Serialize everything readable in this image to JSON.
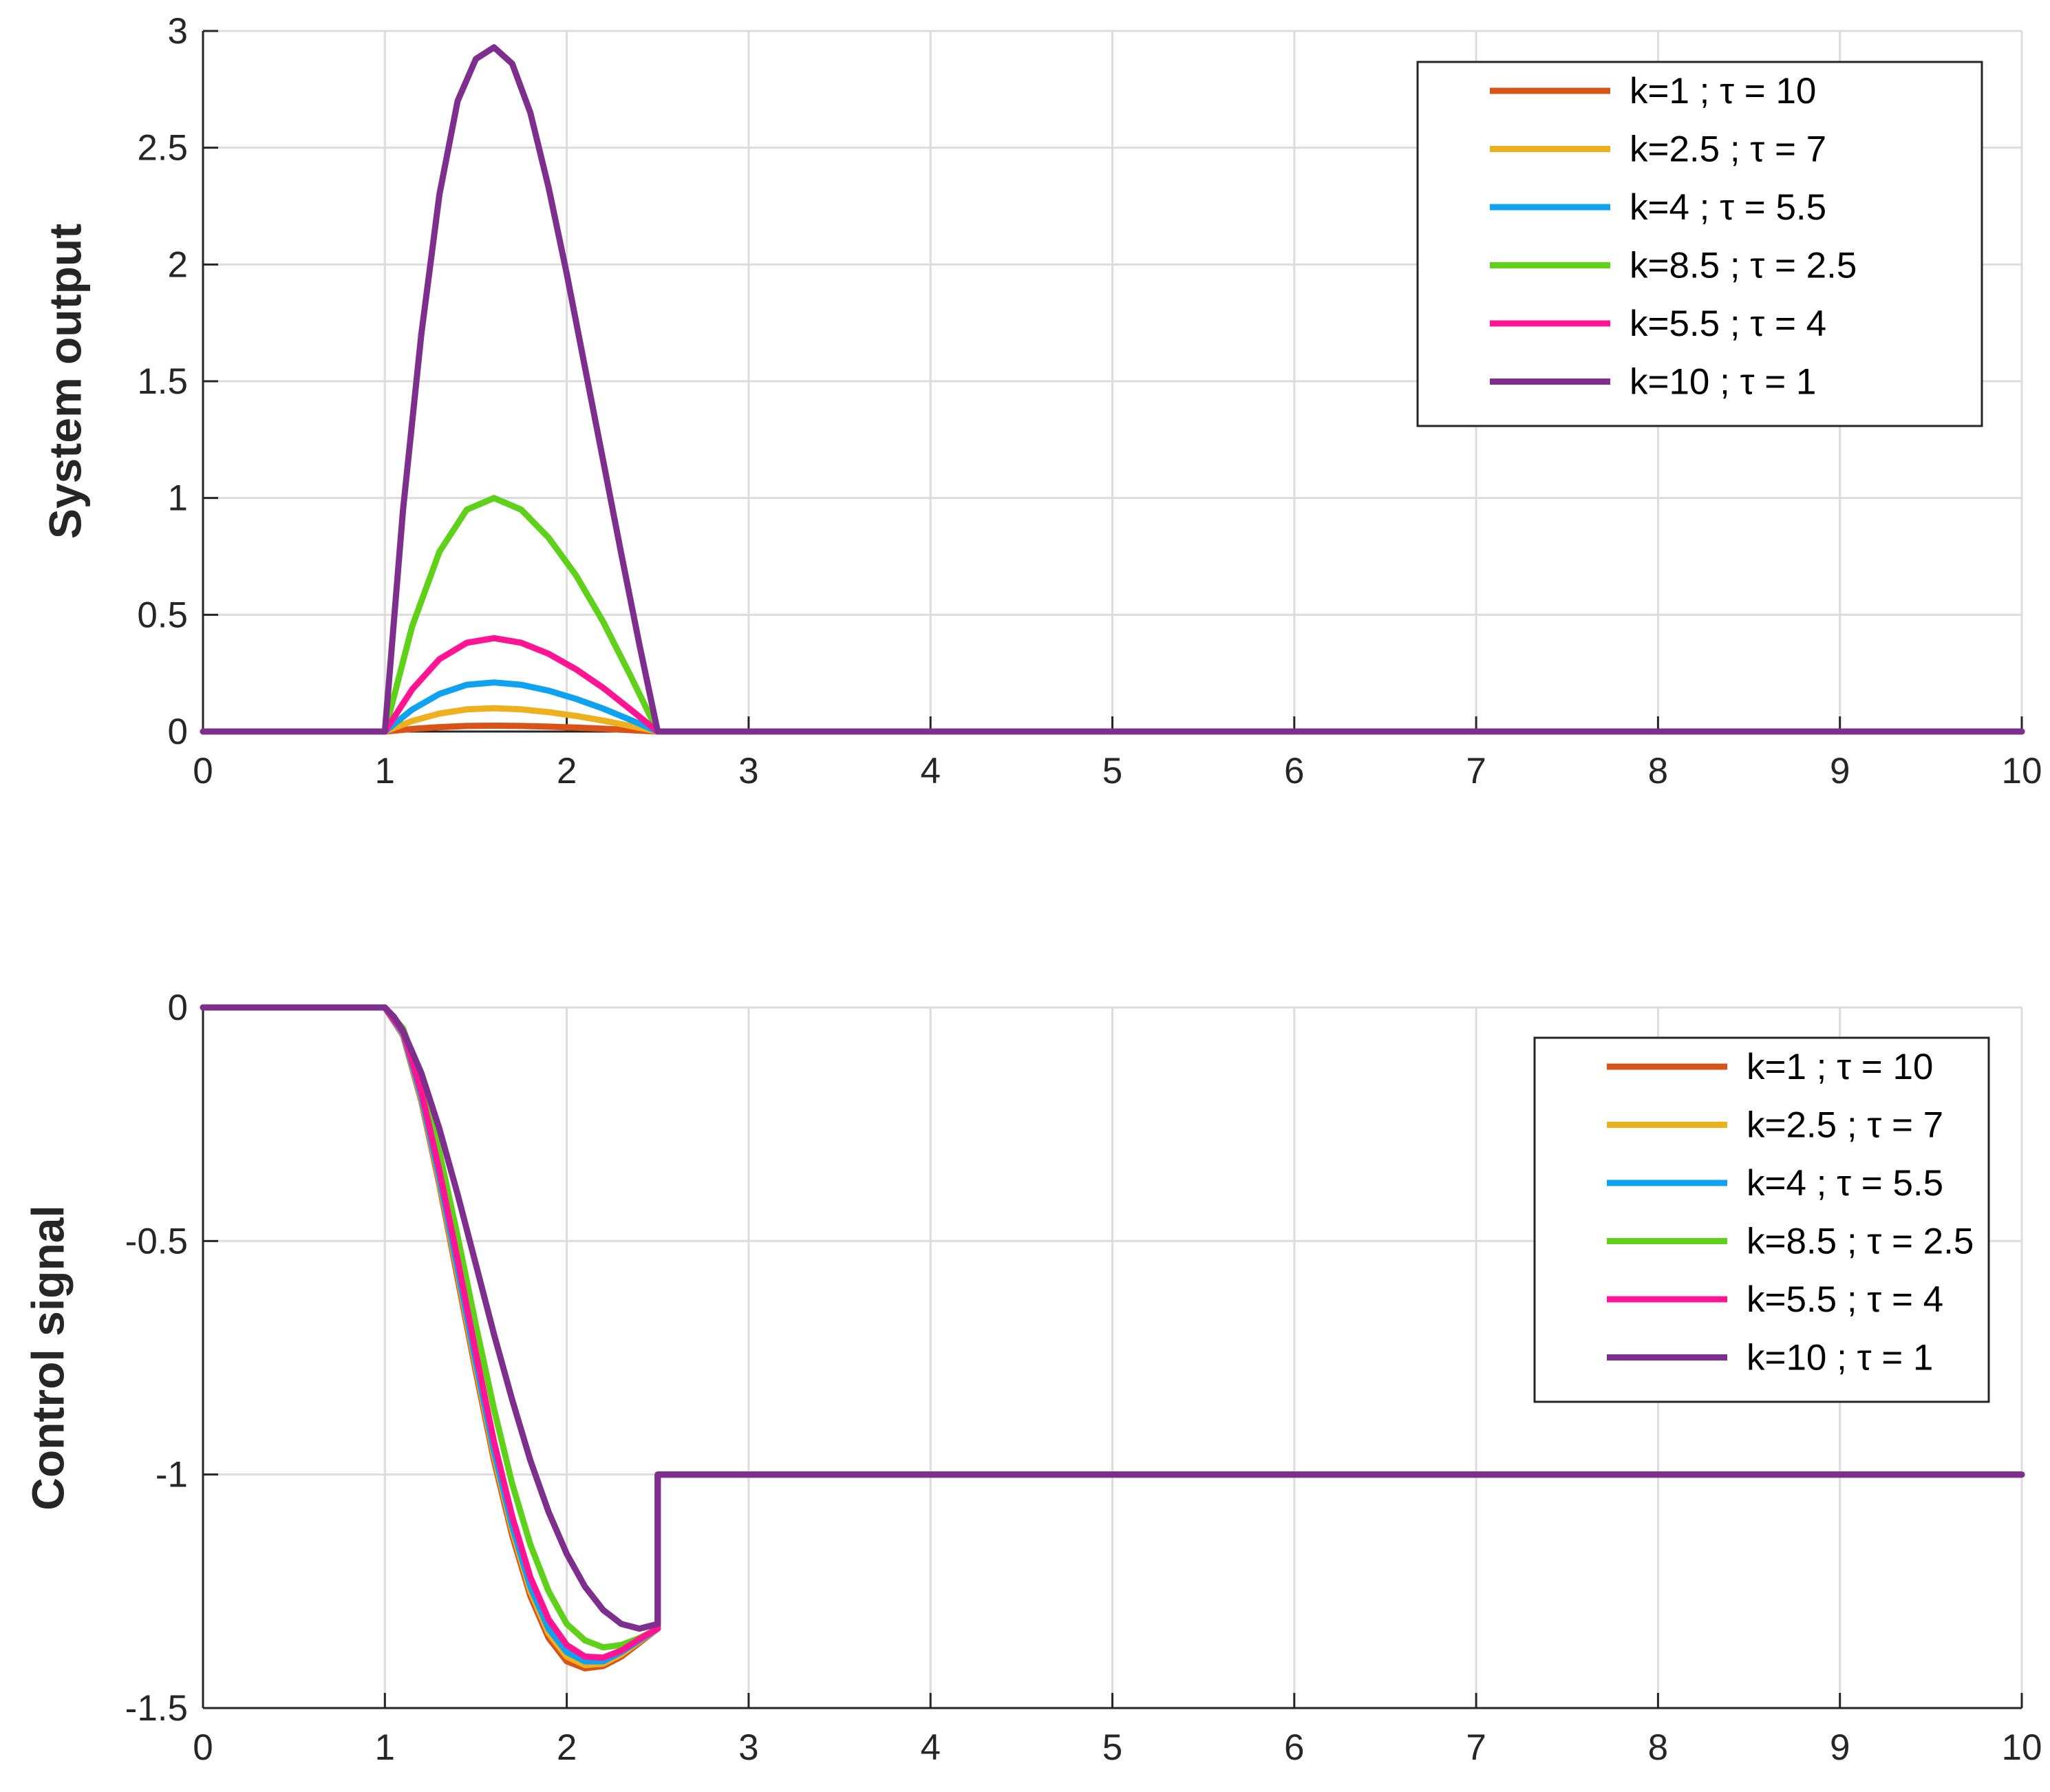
{
  "chart_data": [
    {
      "type": "line",
      "title": "",
      "xlabel": "",
      "ylabel": "System output",
      "xlim": [
        0,
        10
      ],
      "ylim": [
        0,
        3
      ],
      "xticks": [
        "0",
        "1",
        "2",
        "3",
        "4",
        "5",
        "6",
        "7",
        "8",
        "9",
        "10"
      ],
      "yticks": [
        "0",
        "0.5",
        "1",
        "1.5",
        "2",
        "2.5",
        "3"
      ],
      "grid": true,
      "legend_position": "top-right",
      "series": [
        {
          "name": "k=1 ; τ = 10",
          "color": "#D95319",
          "x": [
            0,
            1,
            1.15,
            1.3,
            1.45,
            1.6,
            1.75,
            1.9,
            2.05,
            2.2,
            2.35,
            2.5,
            10
          ],
          "y": [
            0,
            0,
            0.011,
            0.019,
            0.024,
            0.025,
            0.024,
            0.021,
            0.017,
            0.012,
            0.006,
            0,
            0
          ]
        },
        {
          "name": "k=2.5 ; τ = 7",
          "color": "#EDB120",
          "x": [
            0,
            1,
            1.15,
            1.3,
            1.45,
            1.6,
            1.75,
            1.9,
            2.05,
            2.2,
            2.35,
            2.5,
            10
          ],
          "y": [
            0,
            0,
            0.045,
            0.077,
            0.095,
            0.1,
            0.095,
            0.083,
            0.067,
            0.047,
            0.024,
            0,
            0
          ]
        },
        {
          "name": "k=4 ; τ = 5.5",
          "color": "#0EA2F0",
          "x": [
            0,
            1,
            1.15,
            1.3,
            1.45,
            1.6,
            1.75,
            1.9,
            2.05,
            2.2,
            2.35,
            2.5,
            10
          ],
          "y": [
            0,
            0,
            0.094,
            0.161,
            0.2,
            0.21,
            0.2,
            0.175,
            0.14,
            0.098,
            0.05,
            0,
            0
          ]
        },
        {
          "name": "k=8.5 ; τ = 2.5",
          "color": "#5FD11A",
          "x": [
            0,
            1,
            1.15,
            1.3,
            1.45,
            1.6,
            1.75,
            1.9,
            2.05,
            2.2,
            2.35,
            2.5,
            10
          ],
          "y": [
            0,
            0,
            0.45,
            0.77,
            0.95,
            1.0,
            0.95,
            0.83,
            0.67,
            0.47,
            0.24,
            0,
            0
          ]
        },
        {
          "name": "k=5.5 ; τ = 4",
          "color": "#FF1493",
          "x": [
            0,
            1,
            1.15,
            1.3,
            1.45,
            1.6,
            1.75,
            1.9,
            2.05,
            2.2,
            2.35,
            2.5,
            10
          ],
          "y": [
            0,
            0,
            0.18,
            0.31,
            0.38,
            0.4,
            0.38,
            0.333,
            0.267,
            0.187,
            0.095,
            0,
            0
          ]
        },
        {
          "name": "k=10 ; τ = 1",
          "color": "#7E2F8E",
          "x": [
            0,
            1,
            1.1,
            1.2,
            1.3,
            1.4,
            1.5,
            1.6,
            1.7,
            1.8,
            1.9,
            2.0,
            2.1,
            2.2,
            2.3,
            2.4,
            2.5,
            10
          ],
          "y": [
            0,
            0,
            0.95,
            1.7,
            2.3,
            2.7,
            2.88,
            2.93,
            2.86,
            2.65,
            2.33,
            1.96,
            1.56,
            1.16,
            0.76,
            0.37,
            0,
            0
          ]
        }
      ]
    },
    {
      "type": "line",
      "title": "",
      "xlabel": "",
      "ylabel": "Control signal",
      "xlim": [
        0,
        10
      ],
      "ylim": [
        -1.5,
        0
      ],
      "xticks": [
        "0",
        "1",
        "2",
        "3",
        "4",
        "5",
        "6",
        "7",
        "8",
        "9",
        "10"
      ],
      "yticks": [
        "0",
        "-0.5",
        "-1",
        "-1.5"
      ],
      "grid": true,
      "legend_position": "top-right",
      "series": [
        {
          "name": "k=1 ; τ = 10",
          "color": "#D95319",
          "x": [
            0,
            1,
            1.1,
            1.2,
            1.3,
            1.4,
            1.5,
            1.6,
            1.7,
            1.8,
            1.9,
            2.0,
            2.1,
            2.2,
            2.3,
            2.4,
            2.5,
            2.5,
            10
          ],
          "y": [
            0,
            0,
            -0.06,
            -0.2,
            -0.38,
            -0.58,
            -0.78,
            -0.97,
            -1.13,
            -1.26,
            -1.35,
            -1.4,
            -1.415,
            -1.41,
            -1.39,
            -1.36,
            -1.33,
            -1.0,
            -1.0
          ]
        },
        {
          "name": "k=2.5 ; τ = 7",
          "color": "#EDB120",
          "x": [
            0,
            1,
            1.1,
            1.2,
            1.3,
            1.4,
            1.5,
            1.6,
            1.7,
            1.8,
            1.9,
            2.0,
            2.1,
            2.2,
            2.3,
            2.4,
            2.5,
            2.5,
            10
          ],
          "y": [
            0,
            0,
            -0.058,
            -0.195,
            -0.373,
            -0.57,
            -0.77,
            -0.96,
            -1.12,
            -1.25,
            -1.34,
            -1.39,
            -1.408,
            -1.405,
            -1.385,
            -1.357,
            -1.33,
            -1.0,
            -1.0
          ]
        },
        {
          "name": "k=4 ; τ = 5.5",
          "color": "#0EA2F0",
          "x": [
            0,
            1,
            1.1,
            1.2,
            1.3,
            1.4,
            1.5,
            1.6,
            1.7,
            1.8,
            1.9,
            2.0,
            2.1,
            2.2,
            2.3,
            2.4,
            2.5,
            2.5,
            10
          ],
          "y": [
            0,
            0,
            -0.056,
            -0.19,
            -0.365,
            -0.56,
            -0.76,
            -0.95,
            -1.11,
            -1.24,
            -1.33,
            -1.38,
            -1.4,
            -1.4,
            -1.38,
            -1.355,
            -1.33,
            -1.0,
            -1.0
          ]
        },
        {
          "name": "k=8.5 ; τ = 2.5",
          "color": "#5FD11A",
          "x": [
            0,
            1,
            1.1,
            1.2,
            1.3,
            1.4,
            1.5,
            1.6,
            1.7,
            1.8,
            1.9,
            2.0,
            2.1,
            2.2,
            2.3,
            2.4,
            2.5,
            2.5,
            10
          ],
          "y": [
            0,
            0,
            -0.045,
            -0.16,
            -0.31,
            -0.49,
            -0.68,
            -0.86,
            -1.02,
            -1.15,
            -1.25,
            -1.32,
            -1.355,
            -1.37,
            -1.365,
            -1.35,
            -1.33,
            -1.0,
            -1.0
          ]
        },
        {
          "name": "k=5.5 ; τ = 4",
          "color": "#FF1493",
          "x": [
            0,
            1,
            1.1,
            1.2,
            1.3,
            1.4,
            1.5,
            1.6,
            1.7,
            1.8,
            1.9,
            2.0,
            2.1,
            2.2,
            2.3,
            2.4,
            2.5,
            2.5,
            10
          ],
          "y": [
            0,
            0,
            -0.052,
            -0.18,
            -0.35,
            -0.54,
            -0.74,
            -0.93,
            -1.09,
            -1.22,
            -1.31,
            -1.365,
            -1.39,
            -1.392,
            -1.377,
            -1.352,
            -1.33,
            -1.0,
            -1.0
          ]
        },
        {
          "name": "k=10 ; τ = 1",
          "color": "#7E2F8E",
          "x": [
            0,
            1,
            1.05,
            1.1,
            1.2,
            1.3,
            1.4,
            1.5,
            1.6,
            1.7,
            1.8,
            1.9,
            2.0,
            2.1,
            2.2,
            2.3,
            2.4,
            2.5,
            2.5,
            10
          ],
          "y": [
            0,
            0,
            -0.02,
            -0.05,
            -0.14,
            -0.26,
            -0.4,
            -0.55,
            -0.7,
            -0.84,
            -0.97,
            -1.08,
            -1.17,
            -1.24,
            -1.29,
            -1.32,
            -1.33,
            -1.32,
            -1.0,
            -1.0
          ]
        }
      ]
    }
  ]
}
